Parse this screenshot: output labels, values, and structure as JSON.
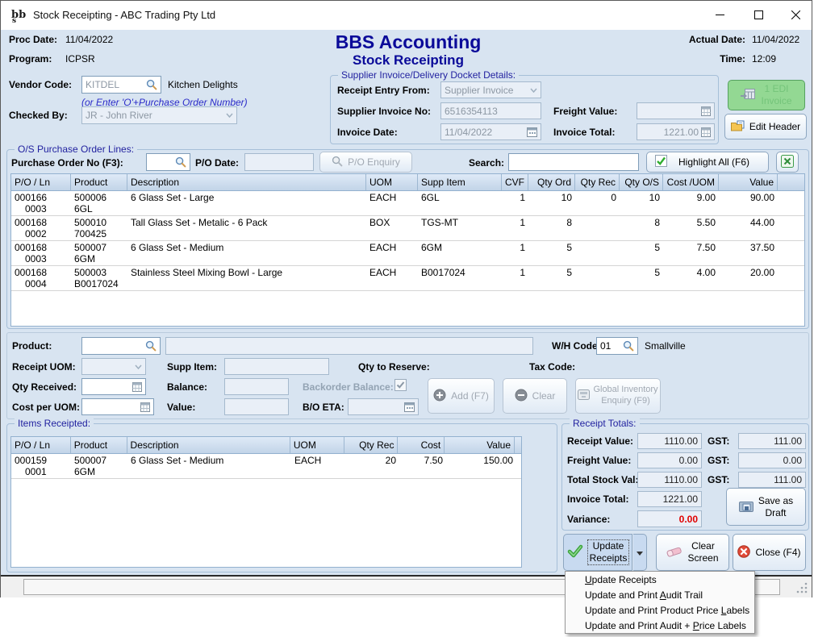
{
  "window": {
    "title": "Stock Receipting - ABC Trading Pty Ltd"
  },
  "header": {
    "proc_date_label": "Proc Date:",
    "proc_date": "11/04/2022",
    "program_label": "Program:",
    "program": "ICPSR",
    "app_title": "BBS Accounting",
    "screen_title": "Stock Receipting",
    "actual_date_label": "Actual Date:",
    "actual_date": "11/04/2022",
    "time_label": "Time:",
    "time": "12:09"
  },
  "vendor": {
    "label": "Vendor Code:",
    "code": "KITDEL",
    "name": "Kitchen Delights",
    "hint": "(or Enter 'O'+Purchase Order Number)",
    "checked_by_label": "Checked By:",
    "checked_by": "JR - John River"
  },
  "invoice_details": {
    "title": "Supplier Invoice/Delivery Docket Details:",
    "receipt_entry_from_label": "Receipt Entry From:",
    "receipt_entry_from": "Supplier Invoice",
    "supplier_invoice_no_label": "Supplier Invoice No:",
    "supplier_invoice_no": "6516354113",
    "invoice_date_label": "Invoice Date:",
    "invoice_date": "11/04/2022",
    "freight_value_label": "Freight Value:",
    "freight_value": "",
    "invoice_total_label": "Invoice Total:",
    "invoice_total": "1221.00",
    "edi_button": "1 EDI\nInvoice",
    "edit_header_button": "Edit Header"
  },
  "po_lines": {
    "title": "O/S Purchase Order Lines:",
    "po_no_label": "Purchase Order No (F3):",
    "po_no_value": "",
    "po_date_label": "P/O Date:",
    "po_date_value": "",
    "po_enquiry_button": "P/O Enquiry",
    "search_label": "Search:",
    "search_value": "",
    "highlight_all_button": "Highlight All (F6)",
    "columns": [
      "P/O / Ln",
      "Product",
      "Description",
      "UOM",
      "Supp Item",
      "CVF",
      "Qty Ord",
      "Qty Rec",
      "Qty O/S",
      "Cost /UOM",
      "Value"
    ],
    "rows": [
      {
        "po_ln": [
          "000166",
          "0003"
        ],
        "product": [
          "500006",
          "6GL"
        ],
        "description": "6 Glass Set - Large",
        "uom": "EACH",
        "supp_item": "6GL",
        "cvf": "1",
        "qty_ord": "10",
        "qty_rec": "0",
        "qty_os": "10",
        "cost_uom": "9.00",
        "value": "90.00"
      },
      {
        "po_ln": [
          "000168",
          "0002"
        ],
        "product": [
          "500010",
          "700425"
        ],
        "description": "Tall Glass Set - Metalic - 6 Pack",
        "uom": "BOX",
        "supp_item": "TGS-MT",
        "cvf": "1",
        "qty_ord": "8",
        "qty_rec": "",
        "qty_os": "8",
        "cost_uom": "5.50",
        "value": "44.00"
      },
      {
        "po_ln": [
          "000168",
          "0003"
        ],
        "product": [
          "500007",
          "6GM"
        ],
        "description": "6 Glass Set - Medium",
        "uom": "EACH",
        "supp_item": "6GM",
        "cvf": "1",
        "qty_ord": "5",
        "qty_rec": "",
        "qty_os": "5",
        "cost_uom": "7.50",
        "value": "37.50"
      },
      {
        "po_ln": [
          "000168",
          "0004"
        ],
        "product": [
          "500003",
          "B0017024"
        ],
        "description": "Stainless Steel Mixing Bowl - Large",
        "uom": "EACH",
        "supp_item": "B0017024",
        "cvf": "1",
        "qty_ord": "5",
        "qty_rec": "",
        "qty_os": "5",
        "cost_uom": "4.00",
        "value": "20.00"
      }
    ]
  },
  "entry_form": {
    "product_label": "Product:",
    "product_value": "",
    "product_description": "",
    "wh_code_label": "W/H Code:",
    "wh_code": "01",
    "wh_name": "Smallville",
    "receipt_uom_label": "Receipt UOM:",
    "receipt_uom": "",
    "supp_item_label": "Supp Item:",
    "supp_item": "",
    "qty_to_reserve_label": "Qty to Reserve:",
    "tax_code_label": "Tax Code:",
    "qty_received_label": "Qty Received:",
    "qty_received": "",
    "balance_label": "Balance:",
    "balance": "",
    "backorder_balance_label": "Backorder Balance:",
    "cost_per_uom_label": "Cost per UOM:",
    "cost_per_uom": "",
    "value_label": "Value:",
    "value": "",
    "bo_eta_label": "B/O ETA:",
    "bo_eta": "",
    "add_button": "Add (F7)",
    "clear_button": "Clear",
    "global_inventory_button": "Global Inventory\nEnquiry (F9)"
  },
  "items_receipted": {
    "title": "Items Receipted:",
    "columns": [
      "P/O / Ln",
      "Product",
      "Description",
      "UOM",
      "Qty Rec",
      "Cost",
      "Value"
    ],
    "rows": [
      {
        "po_ln": [
          "000159",
          "0001"
        ],
        "product": [
          "500007",
          "6GM"
        ],
        "description": "6 Glass Set - Medium",
        "uom": "EACH",
        "qty_rec": "20",
        "cost": "7.50",
        "value": "150.00"
      }
    ]
  },
  "receipt_totals": {
    "title": "Receipt Totals:",
    "receipt_value_label": "Receipt Value:",
    "receipt_value": "1110.00",
    "receipt_gst_label": "GST:",
    "receipt_gst": "111.00",
    "freight_value_label": "Freight Value:",
    "freight_value": "0.00",
    "freight_gst_label": "GST:",
    "freight_gst": "0.00",
    "total_stock_label": "Total Stock Val:",
    "total_stock": "1110.00",
    "total_gst_label": "GST:",
    "total_gst": "111.00",
    "invoice_total_label": "Invoice Total:",
    "invoice_total": "1221.00",
    "variance_label": "Variance:",
    "variance": "0.00",
    "variance_color": "#e00000",
    "save_as_draft_button": "Save as\nDraft"
  },
  "actions": {
    "update_receipts_button": "Update\nReceipts",
    "clear_screen_button": "Clear\nScreen",
    "close_button": "Close (F4)"
  },
  "menu": {
    "items": [
      {
        "label": "Update Receipts",
        "u": 0
      },
      {
        "label": "Update and Print Audit Trail",
        "u": 17
      },
      {
        "label": "Update and Print Product Price Labels",
        "u": 31
      },
      {
        "label": "Update and Print Audit + Price Labels",
        "u": 25
      }
    ]
  }
}
